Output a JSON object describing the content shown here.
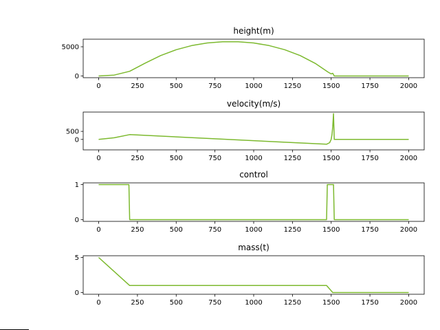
{
  "figure": {
    "line_color": "#7cb92e"
  },
  "chart_data": [
    {
      "type": "line",
      "title": "height(m)",
      "xlabel": "",
      "ylabel": "",
      "xlim": [
        -100,
        2100
      ],
      "ylim": [
        -300,
        6300
      ],
      "xticks": [
        0,
        250,
        500,
        750,
        1000,
        1250,
        1500,
        1750,
        2000
      ],
      "yticks": [
        0,
        5000
      ],
      "grid": false,
      "series": [
        {
          "x": [
            0,
            100,
            200,
            300,
            400,
            500,
            600,
            700,
            800,
            900,
            1000,
            1100,
            1200,
            1300,
            1400,
            1480,
            1500,
            1510,
            1520,
            2000
          ],
          "values": [
            0,
            150,
            800,
            2200,
            3500,
            4500,
            5200,
            5650,
            5850,
            5850,
            5650,
            5200,
            4500,
            3500,
            2100,
            650,
            350,
            450,
            0,
            0
          ]
        }
      ]
    },
    {
      "type": "line",
      "title": "velocity(m/s)",
      "xlabel": "",
      "ylabel": "",
      "xlim": [
        -100,
        2100
      ],
      "ylim": [
        -650,
        1700
      ],
      "xticks": [
        0,
        250,
        500,
        750,
        1000,
        1250,
        1500,
        1750,
        2000
      ],
      "yticks": [
        0,
        500
      ],
      "grid": false,
      "series": [
        {
          "x": [
            0,
            100,
            200,
            1470,
            1490,
            1500,
            1505,
            1510,
            1515,
            1520,
            2000
          ],
          "values": [
            0,
            100,
            300,
            -300,
            -200,
            0,
            300,
            800,
            1600,
            0,
            0
          ]
        }
      ]
    },
    {
      "type": "line",
      "title": "control",
      "xlabel": "",
      "ylabel": "",
      "xlim": [
        -100,
        2100
      ],
      "ylim": [
        -0.05,
        1.05
      ],
      "xticks": [
        0,
        250,
        500,
        750,
        1000,
        1250,
        1500,
        1750,
        2000
      ],
      "yticks": [
        0,
        1
      ],
      "grid": false,
      "series": [
        {
          "x": [
            0,
            195,
            200,
            1470,
            1475,
            1515,
            1520,
            2000
          ],
          "values": [
            1,
            1,
            0,
            0,
            1,
            1,
            0,
            0
          ]
        }
      ]
    },
    {
      "type": "line",
      "title": "mass(t)",
      "xlabel": "",
      "ylabel": "",
      "xlim": [
        -100,
        2100
      ],
      "ylim": [
        -0.25,
        5.25
      ],
      "xticks": [
        0,
        250,
        500,
        750,
        1000,
        1250,
        1500,
        1750,
        2000
      ],
      "yticks": [
        0,
        5
      ],
      "grid": false,
      "series": [
        {
          "x": [
            0,
            200,
            1470,
            1510,
            2000
          ],
          "values": [
            5,
            1,
            1,
            0,
            0
          ]
        }
      ]
    }
  ]
}
